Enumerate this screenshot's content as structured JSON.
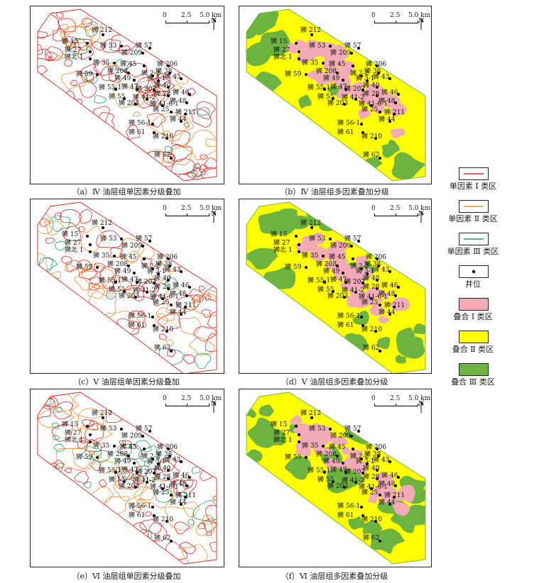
{
  "panels": [
    {
      "id": "a",
      "type": "single",
      "caption": "（a）Ⅳ 油层组单因素分级叠加"
    },
    {
      "id": "b",
      "type": "multi",
      "caption": "（b）Ⅳ 油层组多因素叠加分级"
    },
    {
      "id": "c",
      "type": "single",
      "caption": "（c）Ⅴ 油层组单因素分级叠加"
    },
    {
      "id": "d",
      "type": "multi",
      "caption": "（d）Ⅴ 油层组多因素叠加分级"
    },
    {
      "id": "e",
      "type": "single",
      "caption": "（e）Ⅵ 油层组单因素分级叠加"
    },
    {
      "id": "f",
      "type": "multi",
      "caption": "（f）Ⅵ 油层组多因素叠加分级"
    }
  ],
  "scale": {
    "labels": [
      "0",
      "2.5",
      "5.0 km"
    ],
    "north": "N"
  },
  "wells": [
    "狮 212",
    "狮 15",
    "狮 53",
    "狮 27",
    "狮 57",
    "狮 209",
    "狮北 1",
    "狮 35",
    "狮 206",
    "狮 45",
    "狮 38",
    "狮 59",
    "狮 208",
    "狮 2-2",
    "狮 43",
    "狮 49",
    "狮 3-1",
    "狮 40",
    "狮 47",
    "狮 55-1",
    "狮 207",
    "狮 46",
    "狮 28",
    "狮 55",
    "狮 41-2",
    "狮 48",
    "狮 203",
    "狮 41-6-1",
    "狮 25",
    "狮 211",
    "狮 44",
    "狮 56-1",
    "狮 61",
    "狮 210",
    "狮 62"
  ],
  "legend": [
    {
      "label": "单因素 Ⅰ 类区",
      "kind": "line",
      "color": "#e02020"
    },
    {
      "label": "单因素 Ⅱ 类区",
      "kind": "line",
      "color": "#f08a30"
    },
    {
      "label": "单因素 Ⅲ 类区",
      "kind": "line",
      "color": "#1f9e6e"
    },
    {
      "label": "井位",
      "kind": "dot",
      "color": "#000000"
    },
    {
      "label": "叠合 Ⅰ 类区",
      "kind": "fill",
      "color": "#f2aab7"
    },
    {
      "label": "叠合 Ⅱ 类区",
      "kind": "fill",
      "color": "#ffff00"
    },
    {
      "label": "叠合 Ⅲ 类区",
      "kind": "fill",
      "color": "#6cb33f"
    }
  ]
}
